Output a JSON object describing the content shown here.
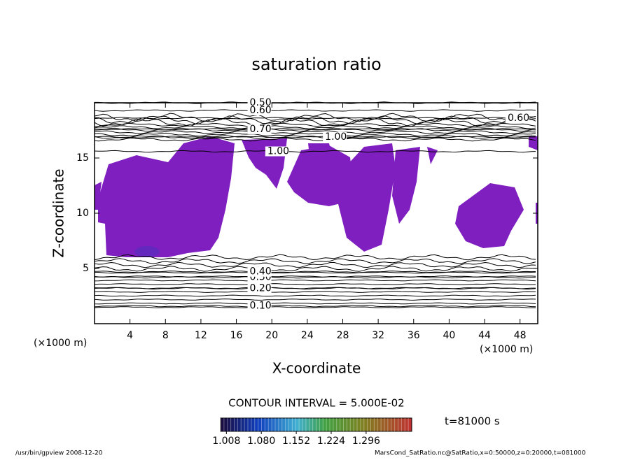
{
  "chart_data": {
    "type": "contour",
    "title": "saturation ratio",
    "x_label": "X-coordinate",
    "y_label": "Z-coordinate",
    "x_unit": "(×1000 m)",
    "xlim": [
      0,
      50
    ],
    "xticks": [
      4,
      8,
      12,
      16,
      20,
      24,
      28,
      32,
      36,
      40,
      44,
      48
    ],
    "ylim": [
      0,
      20
    ],
    "yticks": [
      5,
      10,
      15
    ],
    "fill_color": "#7f1fbf",
    "contour_labels": {
      "labels": [
        "0.10",
        "0.20",
        "0.30",
        "0.40",
        "0.50",
        "0.60",
        "0.70",
        "0.60",
        "1.00",
        "1.00"
      ],
      "x": [
        17.5,
        17.5,
        17.5,
        17.5,
        17.5,
        17.5,
        17.5,
        46.6,
        19.5,
        26
      ],
      "z": [
        1.6,
        3.2,
        4.2,
        4.7,
        20.0,
        19.3,
        17.6,
        18.6,
        15.6,
        16.9
      ]
    },
    "contour_interval": "CONTOUR INTERVAL = 5.000E-02",
    "time": "t=81000 s",
    "colorbar": {
      "clim": [
        0.996,
        1.39
      ],
      "ticks": [
        1.008,
        {
          "value": 1.08,
          "label": "1.080"
        },
        1.152,
        1.224,
        1.296
      ]
    },
    "footer_left": "/usr/bin/gpview  2008-12-20",
    "footer_right": "MarsCond_SatRatio.nc@SatRatio,x=0:50000,z=0:20000,t=081000"
  }
}
